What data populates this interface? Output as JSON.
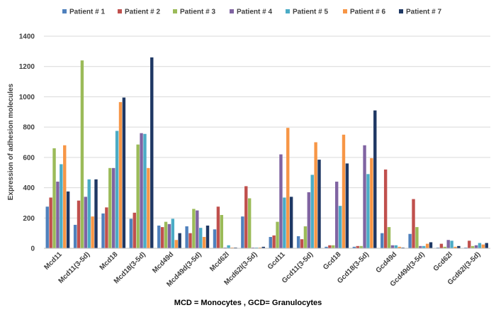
{
  "chart_data": {
    "type": "bar",
    "title": "",
    "xlabel": "MCD = Monocytes , GCD= Granulocytes",
    "ylabel": "Expression of adhesion molecules",
    "ylim": [
      0,
      1400
    ],
    "yticks": [
      0,
      200,
      400,
      600,
      800,
      1000,
      1200,
      1400
    ],
    "grid": true,
    "legend_position": "top",
    "categories": [
      "Mcd11",
      "Mcd11(3-5d)",
      "Mcd18",
      "Mcd18(3-5d)",
      "Mcd49d",
      "Mcd49d(3-5d)",
      "Mcd62l",
      "Mcd62l(3-5d)",
      "Gcd11",
      "Gcd11(3-5d)",
      "Gcd18",
      "Gcd18(3-5d)",
      "Gcd49d",
      "Gcd49d(3-5d)",
      "Gcd62l",
      "Gcd62l(3-5d)"
    ],
    "series": [
      {
        "name": "Patient # 1",
        "color": "#4f81bd",
        "values": [
          275,
          155,
          230,
          195,
          150,
          145,
          125,
          210,
          75,
          80,
          10,
          10,
          100,
          95,
          5,
          5
        ]
      },
      {
        "name": "Patient # 2",
        "color": "#c0504d",
        "values": [
          335,
          315,
          270,
          235,
          140,
          100,
          275,
          410,
          85,
          60,
          20,
          15,
          520,
          325,
          30,
          50
        ]
      },
      {
        "name": "Patient # 3",
        "color": "#9bbb59",
        "values": [
          660,
          1240,
          530,
          685,
          175,
          260,
          220,
          330,
          175,
          145,
          20,
          15,
          140,
          140,
          10,
          15
        ]
      },
      {
        "name": "Patient # 4",
        "color": "#8064a2",
        "values": [
          440,
          340,
          530,
          760,
          160,
          250,
          5,
          5,
          620,
          370,
          440,
          680,
          20,
          15,
          55,
          20
        ]
      },
      {
        "name": "Patient # 5",
        "color": "#4bacc6",
        "values": [
          555,
          455,
          775,
          755,
          195,
          135,
          20,
          5,
          335,
          485,
          280,
          490,
          20,
          15,
          50,
          35
        ]
      },
      {
        "name": "Patient # 6",
        "color": "#f79646",
        "values": [
          680,
          210,
          965,
          530,
          55,
          75,
          5,
          5,
          795,
          700,
          750,
          595,
          10,
          30,
          10,
          25
        ]
      },
      {
        "name": "Patient # 7",
        "color": "#1f3864",
        "values": [
          375,
          455,
          995,
          1260,
          100,
          150,
          5,
          10,
          340,
          585,
          560,
          910,
          5,
          40,
          15,
          35
        ]
      }
    ]
  }
}
